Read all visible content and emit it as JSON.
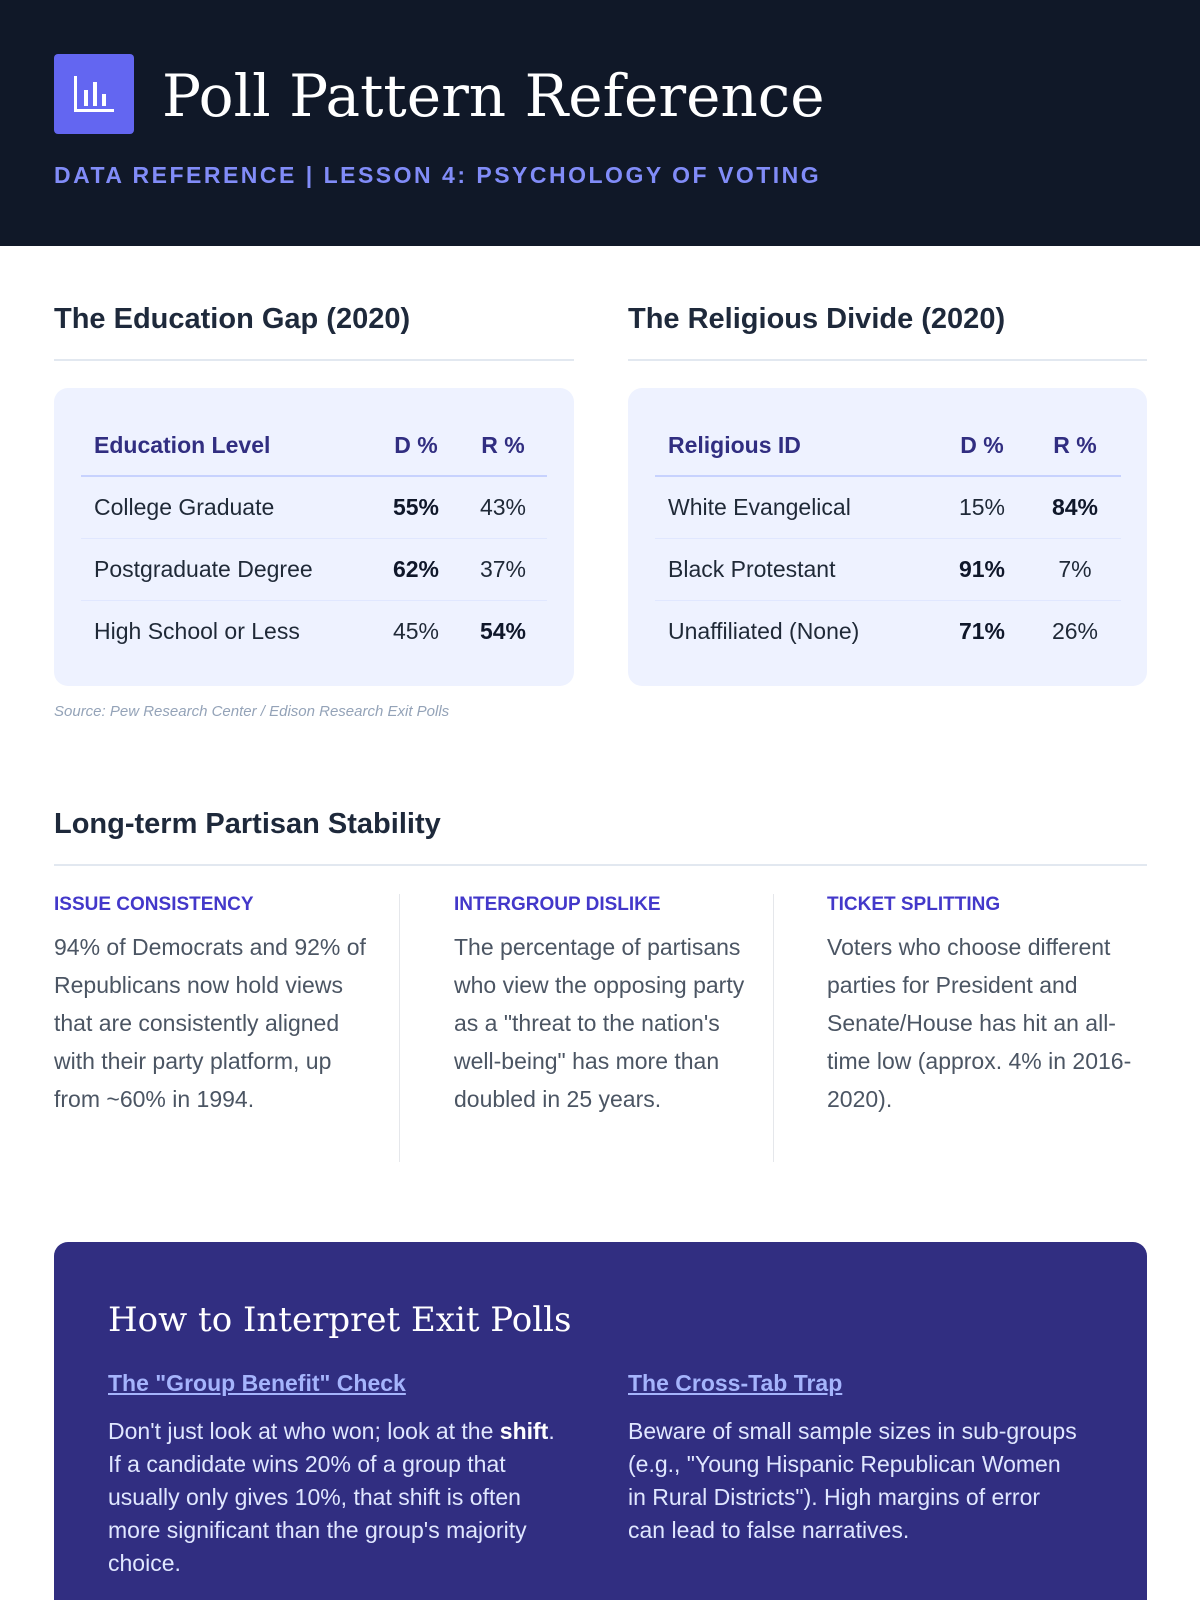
{
  "header": {
    "title": "Poll Pattern Reference",
    "subtitle": "DATA REFERENCE | LESSON 4: PSYCHOLOGY OF VOTING",
    "icon": "bar-chart-icon",
    "accent_color": "#6366f1",
    "background_color": "#101828"
  },
  "education": {
    "title": "The Education Gap (2020)",
    "headers": [
      "Education Level",
      "D %",
      "R %"
    ],
    "rows": [
      {
        "label": "College Graduate",
        "d": "55%",
        "r": "43%",
        "winner": "d"
      },
      {
        "label": "Postgraduate Degree",
        "d": "62%",
        "r": "37%",
        "winner": "d"
      },
      {
        "label": "High School or Less",
        "d": "45%",
        "r": "54%",
        "winner": "r"
      }
    ]
  },
  "religion": {
    "title": "The Religious Divide (2020)",
    "headers": [
      "Religious ID",
      "D %",
      "R %"
    ],
    "rows": [
      {
        "label": "White Evangelical",
        "d": "15%",
        "r": "84%",
        "winner": "r"
      },
      {
        "label": "Black Protestant",
        "d": "91%",
        "r": "7%",
        "winner": "d"
      },
      {
        "label": "Unaffiliated (None)",
        "d": "71%",
        "r": "26%",
        "winner": "d"
      }
    ]
  },
  "source": "Source: Pew Research Center / Edison Research Exit Polls",
  "stability": {
    "title": "Long-term Partisan Stability",
    "columns": [
      {
        "heading": "ISSUE CONSISTENCY",
        "text": "94% of Democrats and 92% of Republicans now hold views that are consistently aligned with their party platform, up from ~60% in 1994."
      },
      {
        "heading": "INTERGROUP DISLIKE",
        "text": "The percentage of partisans who view the opposing party as a \"threat to the nation's well-being\" has more than doubled in 25 years."
      },
      {
        "heading": "TICKET SPLITTING",
        "text": "Voters who choose different parties for President and Senate/House has hit an all-time low (approx. 4% in 2016-2020)."
      }
    ]
  },
  "interpret": {
    "title": "How to Interpret Exit Polls",
    "tips": [
      {
        "heading": "The \"Group Benefit\" Check",
        "text_before": "Don't just look at who won; look at the ",
        "emphasis": "shift",
        "text_after": ". If a candidate wins 20% of a group that usually only gives 10%, that shift is often more significant than the group's majority choice."
      },
      {
        "heading": "The Cross-Tab Trap",
        "text": "Beware of small sample sizes in sub-groups (e.g., \"Young Hispanic Republican Women in Rural Districts\"). High margins of error can lead to false narratives."
      }
    ]
  }
}
